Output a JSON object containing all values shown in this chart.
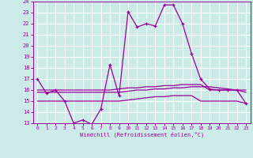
{
  "xlabel": "Windchill (Refroidissement éolien,°C)",
  "xlim": [
    -0.5,
    23.5
  ],
  "ylim": [
    13,
    24
  ],
  "yticks": [
    13,
    14,
    15,
    16,
    17,
    18,
    19,
    20,
    21,
    22,
    23,
    24
  ],
  "xticks": [
    0,
    1,
    2,
    3,
    4,
    5,
    6,
    7,
    8,
    9,
    10,
    11,
    12,
    13,
    14,
    15,
    16,
    17,
    18,
    19,
    20,
    21,
    22,
    23
  ],
  "bg_color": "#cceae7",
  "grid_color": "#ffffff",
  "line_color": "#990099",
  "curve1_x": [
    0,
    1,
    2,
    3,
    4,
    5,
    6,
    7,
    8,
    9,
    10,
    11,
    12,
    13,
    14,
    15,
    16,
    17,
    18,
    19,
    20,
    21,
    22,
    23
  ],
  "curve1_y": [
    17,
    15.7,
    16,
    15,
    13,
    13.3,
    12.9,
    14.3,
    18.3,
    15.5,
    23.1,
    21.7,
    22,
    21.8,
    23.7,
    23.7,
    22,
    19.3,
    17,
    16.1,
    16,
    16,
    16,
    14.8
  ],
  "curve2_x": [
    0,
    1,
    2,
    3,
    4,
    5,
    6,
    7,
    8,
    9,
    10,
    11,
    12,
    13,
    14,
    15,
    16,
    17,
    18,
    19,
    20,
    21,
    22,
    23
  ],
  "curve2_y": [
    16,
    16,
    16,
    16,
    16,
    16,
    16,
    16,
    16,
    16.1,
    16.2,
    16.2,
    16.3,
    16.3,
    16.4,
    16.4,
    16.5,
    16.5,
    16.5,
    16,
    16,
    16,
    16,
    16
  ],
  "curve3_x": [
    0,
    1,
    2,
    3,
    4,
    5,
    6,
    7,
    8,
    9,
    10,
    11,
    12,
    13,
    14,
    15,
    16,
    17,
    18,
    19,
    20,
    21,
    22,
    23
  ],
  "curve3_y": [
    15.8,
    15.8,
    15.8,
    15.8,
    15.8,
    15.8,
    15.8,
    15.8,
    15.8,
    15.8,
    15.9,
    16.0,
    16.0,
    16.1,
    16.1,
    16.2,
    16.2,
    16.3,
    16.3,
    16.3,
    16.2,
    16.1,
    16.0,
    15.8
  ],
  "curve4_x": [
    0,
    1,
    2,
    3,
    4,
    5,
    6,
    7,
    8,
    9,
    10,
    11,
    12,
    13,
    14,
    15,
    16,
    17,
    18,
    19,
    20,
    21,
    22,
    23
  ],
  "curve4_y": [
    15,
    15,
    15,
    15,
    15,
    15,
    15,
    15,
    15,
    15,
    15.1,
    15.2,
    15.3,
    15.4,
    15.4,
    15.5,
    15.5,
    15.5,
    15,
    15,
    15,
    15,
    15,
    14.8
  ]
}
